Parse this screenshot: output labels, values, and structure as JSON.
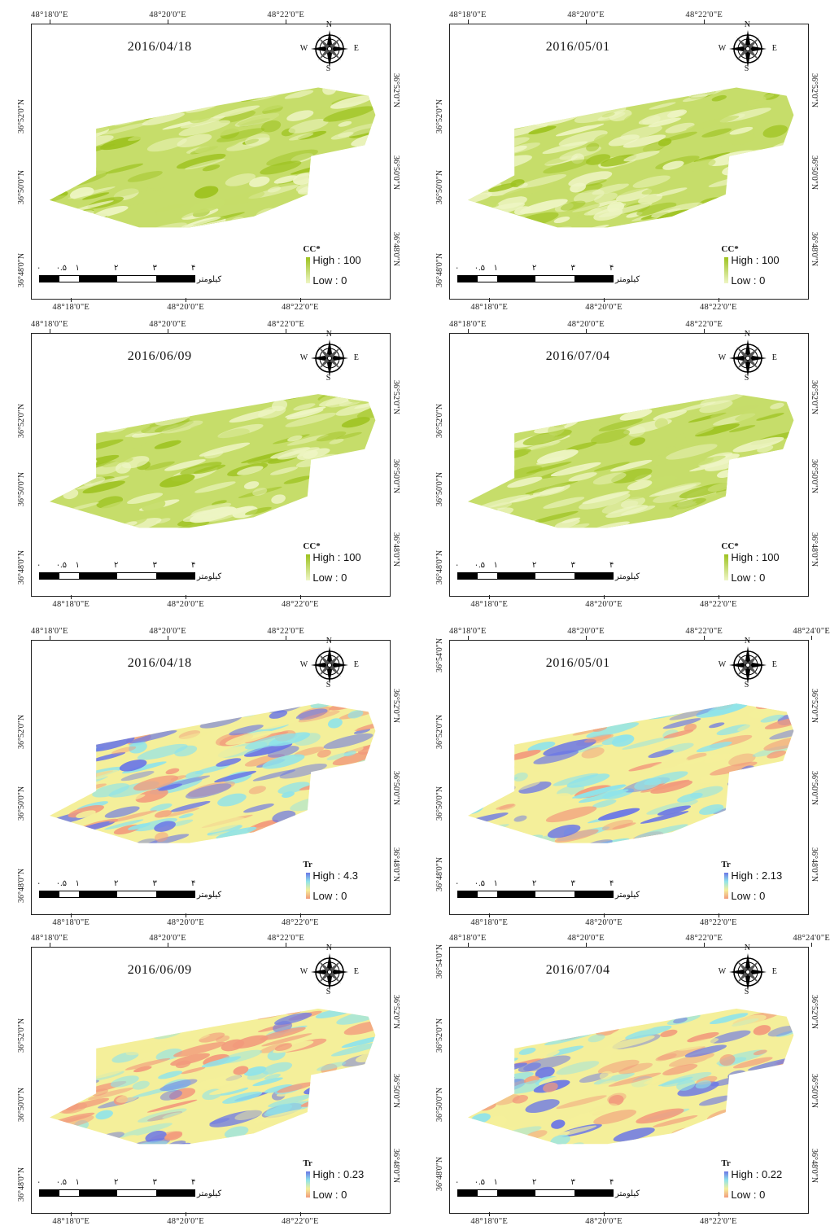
{
  "panels": [
    {
      "id": "cc-0418",
      "date": "2016/04/18",
      "top_ticks": [
        "48°18'0\"E",
        "48°20'0\"E",
        "48°22'0\"E"
      ],
      "bottom_ticks": [
        "48°18'0\"E",
        "48°20'0\"E",
        "48°22'0\"E"
      ],
      "left_ticks": [
        "36°52'0\"N",
        "36°50'0\"N",
        "36°48'0\"N"
      ],
      "right_ticks": [
        "36°52'0\"N",
        "36°50'0\"N",
        "36°48'0\"N"
      ],
      "legend": {
        "title": "CC*",
        "high": "High : 100",
        "low": "Low : 0"
      },
      "scale_labels": [
        "۰",
        "۰.۵",
        "۱",
        "۲",
        "۳",
        "۴"
      ],
      "scale_unit": "کیلومتر",
      "palette": "cc"
    },
    {
      "id": "cc-0501",
      "date": "2016/05/01",
      "top_ticks": [
        "48°18'0\"E",
        "48°20'0\"E",
        "48°22'0\"E"
      ],
      "bottom_ticks": [
        "48°18'0\"E",
        "48°20'0\"E",
        "48°22'0\"E"
      ],
      "left_ticks": [
        "36°52'0\"N",
        "36°50'0\"N",
        "36°48'0\"N"
      ],
      "right_ticks": [
        "36°52'0\"N",
        "36°50'0\"N",
        "36°48'0\"N"
      ],
      "legend": {
        "title": "CC*",
        "high": "High : 100",
        "low": "Low : 0"
      },
      "scale_labels": [
        "۰",
        "۰.۵",
        "۱",
        "۲",
        "۳",
        "۴"
      ],
      "scale_unit": "کیلومتر",
      "palette": "cc"
    },
    {
      "id": "cc-0609",
      "date": "2016/06/09",
      "top_ticks": [
        "48°18'0\"E",
        "48°20'0\"E",
        "48°22'0\"E"
      ],
      "bottom_ticks": [
        "48°18'0\"E",
        "48°20'0\"E",
        "48°22'0\"E"
      ],
      "left_ticks": [
        "36°52'0\"N",
        "36°50'0\"N",
        "36°48'0\"N"
      ],
      "right_ticks": [
        "36°52'0\"N",
        "36°50'0\"N",
        "36°48'0\"N"
      ],
      "legend": {
        "title": "CC*",
        "high": "High : 100",
        "low": "Low : 0"
      },
      "scale_labels": [
        "۰",
        "۰.۵",
        "۱",
        "۲",
        "۳",
        "۴"
      ],
      "scale_unit": "کیلومتر",
      "palette": "cc"
    },
    {
      "id": "cc-0704",
      "date": "2016/07/04",
      "top_ticks": [
        "48°18'0\"E",
        "48°20'0\"E",
        "48°22'0\"E"
      ],
      "bottom_ticks": [
        "48°18'0\"E",
        "48°20'0\"E",
        "48°22'0\"E"
      ],
      "left_ticks": [
        "36°52'0\"N",
        "36°50'0\"N",
        "36°48'0\"N"
      ],
      "right_ticks": [
        "36°52'0\"N",
        "36°50'0\"N",
        "36°48'0\"N"
      ],
      "legend": {
        "title": "CC*",
        "high": "High : 100",
        "low": "Low : 0"
      },
      "scale_labels": [
        "۰",
        "۰.۵",
        "۱",
        "۲",
        "۳",
        "۴"
      ],
      "scale_unit": "کیلومتر",
      "palette": "cc"
    },
    {
      "id": "tr-0418",
      "date": "2016/04/18",
      "top_ticks": [
        "48°18'0\"E",
        "48°20'0\"E",
        "48°22'0\"E"
      ],
      "bottom_ticks": [
        "48°18'0\"E",
        "48°20'0\"E",
        "48°22'0\"E"
      ],
      "left_ticks": [
        "36°52'0\"N",
        "36°50'0\"N",
        "36°48'0\"N"
      ],
      "right_ticks": [
        "36°52'0\"N",
        "36°50'0\"N",
        "36°48'0\"N"
      ],
      "legend": {
        "title": "Tr",
        "high": "High : 4.3",
        "low": "Low : 0"
      },
      "scale_labels": [
        "۰",
        "۰.۵",
        "۱",
        "۲",
        "۳",
        "۴"
      ],
      "scale_unit": "کیلومتر",
      "palette": "tr"
    },
    {
      "id": "tr-0501",
      "date": "2016/05/01",
      "top_ticks": [
        "48°18'0\"E",
        "48°20'0\"E",
        "48°22'0\"E",
        "48°24'0\"E"
      ],
      "bottom_ticks": [
        "48°18'0\"E",
        "48°20'0\"E",
        "48°22'0\"E"
      ],
      "left_ticks": [
        "36°54'0\"N",
        "36°52'0\"N",
        "36°50'0\"N",
        "36°48'0\"N"
      ],
      "right_ticks": [
        "36°52'0\"N",
        "36°50'0\"N",
        "36°48'0\"N"
      ],
      "legend": {
        "title": "Tr",
        "high": "High : 2.13",
        "low": "Low : 0"
      },
      "scale_labels": [
        "۰",
        "۰.۵",
        "۱",
        "۲",
        "۳",
        "۴"
      ],
      "scale_unit": "کیلومتر",
      "palette": "tr"
    },
    {
      "id": "tr-0609",
      "date": "2016/06/09",
      "top_ticks": [
        "48°18'0\"E",
        "48°20'0\"E",
        "48°22'0\"E"
      ],
      "bottom_ticks": [
        "48°18'0\"E",
        "48°20'0\"E",
        "48°22'0\"E"
      ],
      "left_ticks": [
        "36°52'0\"N",
        "36°50'0\"N",
        "36°48'0\"N"
      ],
      "right_ticks": [
        "36°52'0\"N",
        "36°50'0\"N",
        "36°48'0\"N"
      ],
      "legend": {
        "title": "Tr",
        "high": "High : 0.23",
        "low": "Low : 0"
      },
      "scale_labels": [
        "۰",
        "۰.۵",
        "۱",
        "۲",
        "۳",
        "۴"
      ],
      "scale_unit": "کیلومتر",
      "palette": "tr"
    },
    {
      "id": "tr-0704",
      "date": "2016/07/04",
      "top_ticks": [
        "48°18'0\"E",
        "48°20'0\"E",
        "48°22'0\"E",
        "48°24'0\"E"
      ],
      "bottom_ticks": [
        "48°18'0\"E",
        "48°20'0\"E",
        "48°22'0\"E"
      ],
      "left_ticks": [
        "36°54'0\"N",
        "36°52'0\"N",
        "36°50'0\"N",
        "36°48'0\"N"
      ],
      "right_ticks": [
        "36°52'0\"N",
        "36°50'0\"N",
        "36°48'0\"N"
      ],
      "legend": {
        "title": "Tr",
        "high": "High : 0.22",
        "low": "Low : 0"
      },
      "scale_labels": [
        "۰",
        "۰.۵",
        "۱",
        "۲",
        "۳",
        "۴"
      ],
      "scale_unit": "کیلومتر",
      "palette": "tr"
    }
  ],
  "compass": {
    "n": "N",
    "s": "S",
    "e": "E",
    "w": "W",
    "icon": "north-arrow-compass-icon"
  },
  "colors": {
    "cc_high": "#9dc21f",
    "cc_mid": "#c6dd6a",
    "cc_low": "#eef5c4",
    "tr_high": "#6b77e6",
    "tr_cyan": "#8fe3ea",
    "tr_yellow": "#f4ef9a",
    "tr_low": "#f29a7c",
    "frame": "#222222"
  }
}
